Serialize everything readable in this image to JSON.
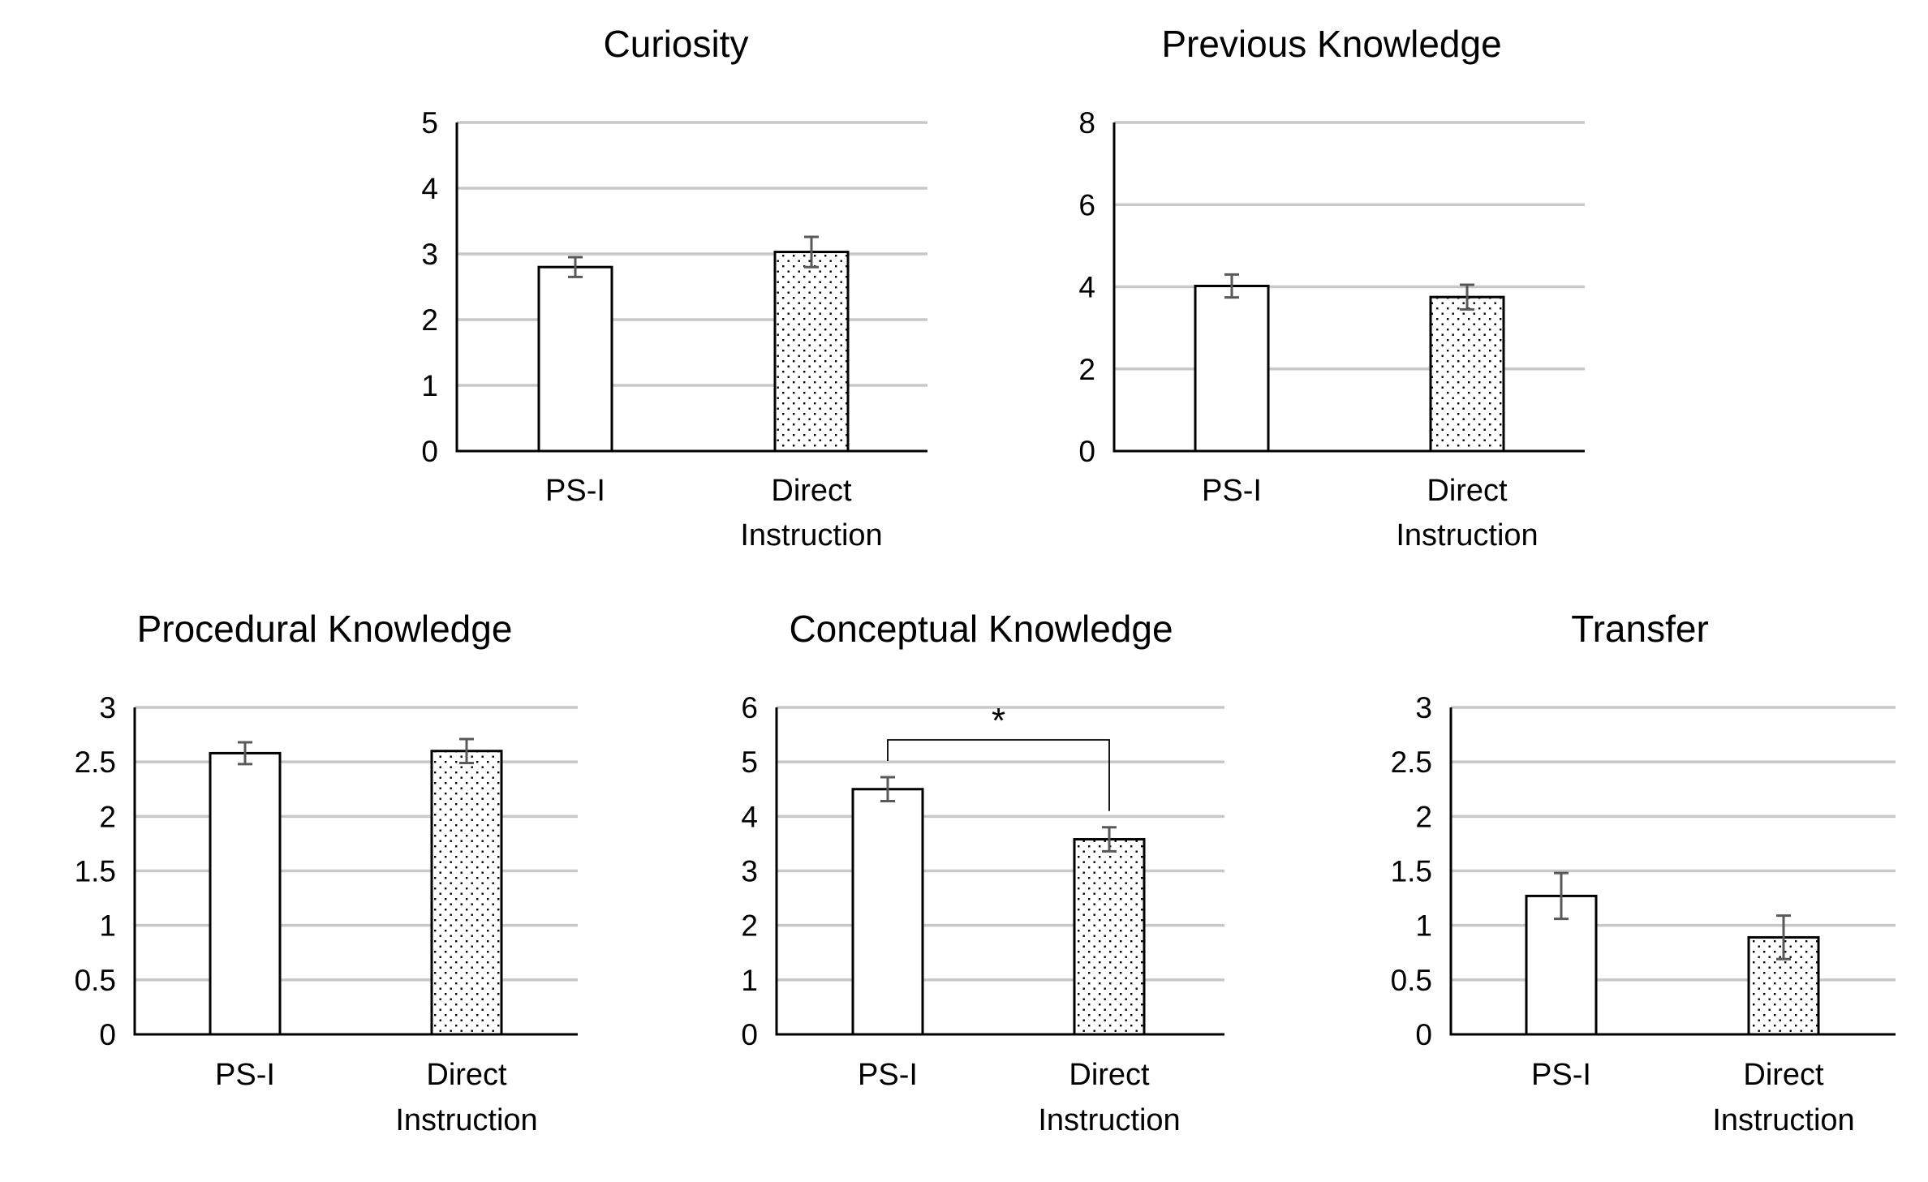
{
  "figure": {
    "background": "#ffffff",
    "grid_color": "#c8c8c8",
    "error_bar_color": "#595959"
  },
  "series_styles": [
    {
      "category": "PS-I",
      "fill": "white",
      "outline": "#000000"
    },
    {
      "category": "Direct Instruction",
      "fill": "dotted",
      "dot_color": "#000000",
      "outline": "#000000"
    }
  ],
  "chart_data": [
    {
      "type": "bar",
      "title": "Curiosity",
      "categories": [
        [
          "PS-I"
        ],
        [
          "Direct",
          "Instruction"
        ]
      ],
      "values": [
        2.8,
        3.03
      ],
      "error": [
        0.15,
        0.23
      ],
      "yticks": [
        "0",
        "1",
        "2",
        "3",
        "4",
        "5"
      ],
      "ylim": [
        0,
        5
      ],
      "grid": true,
      "significance": null
    },
    {
      "type": "bar",
      "title": "Previous  Knowledge",
      "categories": [
        [
          "PS-I"
        ],
        [
          "Direct",
          "Instruction"
        ]
      ],
      "values": [
        4.02,
        3.75
      ],
      "error": [
        0.28,
        0.3
      ],
      "yticks": [
        "0",
        "2",
        "4",
        "6",
        "8"
      ],
      "ylim": [
        0,
        8
      ],
      "grid": true,
      "significance": null
    },
    {
      "type": "bar",
      "title": "Procedural Knowledge",
      "categories": [
        [
          "PS-I"
        ],
        [
          "Direct",
          "Instruction"
        ]
      ],
      "values": [
        2.58,
        2.6
      ],
      "error": [
        0.1,
        0.11
      ],
      "yticks": [
        "0",
        "0.5",
        "1",
        "1.5",
        "2",
        "2.5",
        "3"
      ],
      "ylim": [
        0,
        3
      ],
      "grid": true,
      "significance": null
    },
    {
      "type": "bar",
      "title": "Conceptual Knowledge",
      "categories": [
        [
          "PS-I"
        ],
        [
          "Direct",
          "Instruction"
        ]
      ],
      "values": [
        4.5,
        3.58
      ],
      "error": [
        0.22,
        0.22
      ],
      "yticks": [
        "0",
        "1",
        "2",
        "3",
        "4",
        "5",
        "6"
      ],
      "ylim": [
        0,
        6
      ],
      "grid": true,
      "significance": {
        "label": "*",
        "between": [
          "PS-I",
          "Direct Instruction"
        ]
      }
    },
    {
      "type": "bar",
      "title": "Transfer",
      "categories": [
        [
          "PS-I"
        ],
        [
          "Direct",
          "Instruction"
        ]
      ],
      "values": [
        1.27,
        0.89
      ],
      "error": [
        0.21,
        0.2
      ],
      "yticks": [
        "0",
        "0.5",
        "1",
        "1.5",
        "2",
        "2.5",
        "3"
      ],
      "ylim": [
        0,
        3
      ],
      "grid": true,
      "significance": null
    }
  ]
}
